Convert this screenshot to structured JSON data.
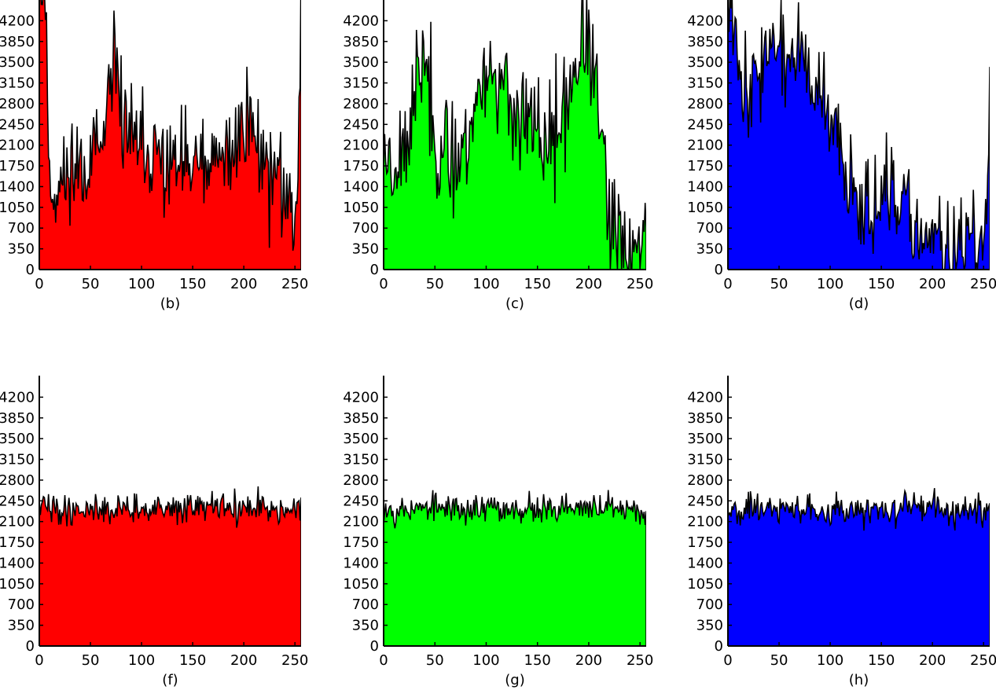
{
  "chart_data": [
    {
      "type": "area",
      "caption": "(b)",
      "color": "#ff0000",
      "xlim": [
        0,
        256
      ],
      "ylim": [
        0,
        4550
      ],
      "xticks": [
        0,
        50,
        100,
        150,
        200,
        250
      ],
      "yticks": [
        0,
        350,
        700,
        1050,
        1400,
        1750,
        2100,
        2450,
        2800,
        3150,
        3500,
        3850,
        4200
      ],
      "profile": [
        [
          0,
          4900
        ],
        [
          6,
          4550
        ],
        [
          10,
          1400
        ],
        [
          18,
          1300
        ],
        [
          30,
          1700
        ],
        [
          45,
          1850
        ],
        [
          60,
          1950
        ],
        [
          68,
          2600
        ],
        [
          75,
          3500
        ],
        [
          82,
          2600
        ],
        [
          92,
          2050
        ],
        [
          110,
          1850
        ],
        [
          130,
          1750
        ],
        [
          150,
          1700
        ],
        [
          170,
          1700
        ],
        [
          185,
          1900
        ],
        [
          198,
          2450
        ],
        [
          205,
          2600
        ],
        [
          215,
          2000
        ],
        [
          232,
          1550
        ],
        [
          245,
          1050
        ],
        [
          251,
          950
        ],
        [
          254,
          2500
        ],
        [
          256,
          4900
        ]
      ],
      "noise": 550,
      "seed": 11
    },
    {
      "type": "area",
      "caption": "(c)",
      "color": "#00ff00",
      "xlim": [
        0,
        256
      ],
      "ylim": [
        0,
        4550
      ],
      "xticks": [
        0,
        50,
        100,
        150,
        200,
        250
      ],
      "yticks": [
        0,
        350,
        700,
        1050,
        1400,
        1750,
        2100,
        2450,
        2800,
        3150,
        3500,
        3850,
        4200
      ],
      "profile": [
        [
          0,
          2000
        ],
        [
          10,
          1800
        ],
        [
          25,
          2400
        ],
        [
          40,
          3700
        ],
        [
          50,
          2200
        ],
        [
          65,
          1900
        ],
        [
          80,
          2100
        ],
        [
          95,
          3200
        ],
        [
          105,
          3500
        ],
        [
          120,
          2800
        ],
        [
          140,
          2400
        ],
        [
          160,
          2100
        ],
        [
          175,
          2500
        ],
        [
          188,
          3400
        ],
        [
          195,
          3900
        ],
        [
          203,
          3600
        ],
        [
          210,
          2600
        ],
        [
          215,
          1700
        ],
        [
          220,
          700
        ],
        [
          235,
          450
        ],
        [
          250,
          300
        ],
        [
          254,
          700
        ],
        [
          256,
          1200
        ]
      ],
      "noise": 600,
      "seed": 23
    },
    {
      "type": "area",
      "caption": "(d)",
      "color": "#0000ff",
      "xlim": [
        0,
        256
      ],
      "ylim": [
        0,
        4550
      ],
      "xticks": [
        0,
        50,
        100,
        150,
        200,
        250
      ],
      "yticks": [
        0,
        350,
        700,
        1050,
        1400,
        1750,
        2100,
        2450,
        2800,
        3150,
        3500,
        3850,
        4200
      ],
      "profile": [
        [
          0,
          4800
        ],
        [
          8,
          4200
        ],
        [
          15,
          3000
        ],
        [
          25,
          3100
        ],
        [
          40,
          3900
        ],
        [
          55,
          3500
        ],
        [
          70,
          3700
        ],
        [
          90,
          2800
        ],
        [
          110,
          2000
        ],
        [
          125,
          1300
        ],
        [
          140,
          1100
        ],
        [
          160,
          1200
        ],
        [
          180,
          800
        ],
        [
          195,
          450
        ],
        [
          210,
          350
        ],
        [
          230,
          320
        ],
        [
          245,
          300
        ],
        [
          251,
          600
        ],
        [
          254,
          1600
        ],
        [
          256,
          3400
        ]
      ],
      "noise": 500,
      "seed": 37
    },
    {
      "type": "area",
      "caption": "(f)",
      "color": "#ff0000",
      "xlim": [
        0,
        256
      ],
      "ylim": [
        0,
        4550
      ],
      "xticks": [
        0,
        50,
        100,
        150,
        200,
        250
      ],
      "yticks": [
        0,
        350,
        700,
        1050,
        1400,
        1750,
        2100,
        2450,
        2800,
        3150,
        3500,
        3850,
        4200
      ],
      "profile": [
        [
          0,
          2320
        ],
        [
          256,
          2320
        ]
      ],
      "noise": 160,
      "seed": 41
    },
    {
      "type": "area",
      "caption": "(g)",
      "color": "#00ff00",
      "xlim": [
        0,
        256
      ],
      "ylim": [
        0,
        4550
      ],
      "xticks": [
        0,
        50,
        100,
        150,
        200,
        250
      ],
      "yticks": [
        0,
        350,
        700,
        1050,
        1400,
        1750,
        2100,
        2450,
        2800,
        3150,
        3500,
        3850,
        4200
      ],
      "profile": [
        [
          0,
          2320
        ],
        [
          256,
          2320
        ]
      ],
      "noise": 160,
      "seed": 53
    },
    {
      "type": "area",
      "caption": "(h)",
      "color": "#0000ff",
      "xlim": [
        0,
        256
      ],
      "ylim": [
        0,
        4550
      ],
      "xticks": [
        0,
        50,
        100,
        150,
        200,
        250
      ],
      "yticks": [
        0,
        350,
        700,
        1050,
        1400,
        1750,
        2100,
        2450,
        2800,
        3150,
        3500,
        3850,
        4200
      ],
      "profile": [
        [
          0,
          2320
        ],
        [
          256,
          2320
        ]
      ],
      "noise": 160,
      "seed": 67
    }
  ]
}
